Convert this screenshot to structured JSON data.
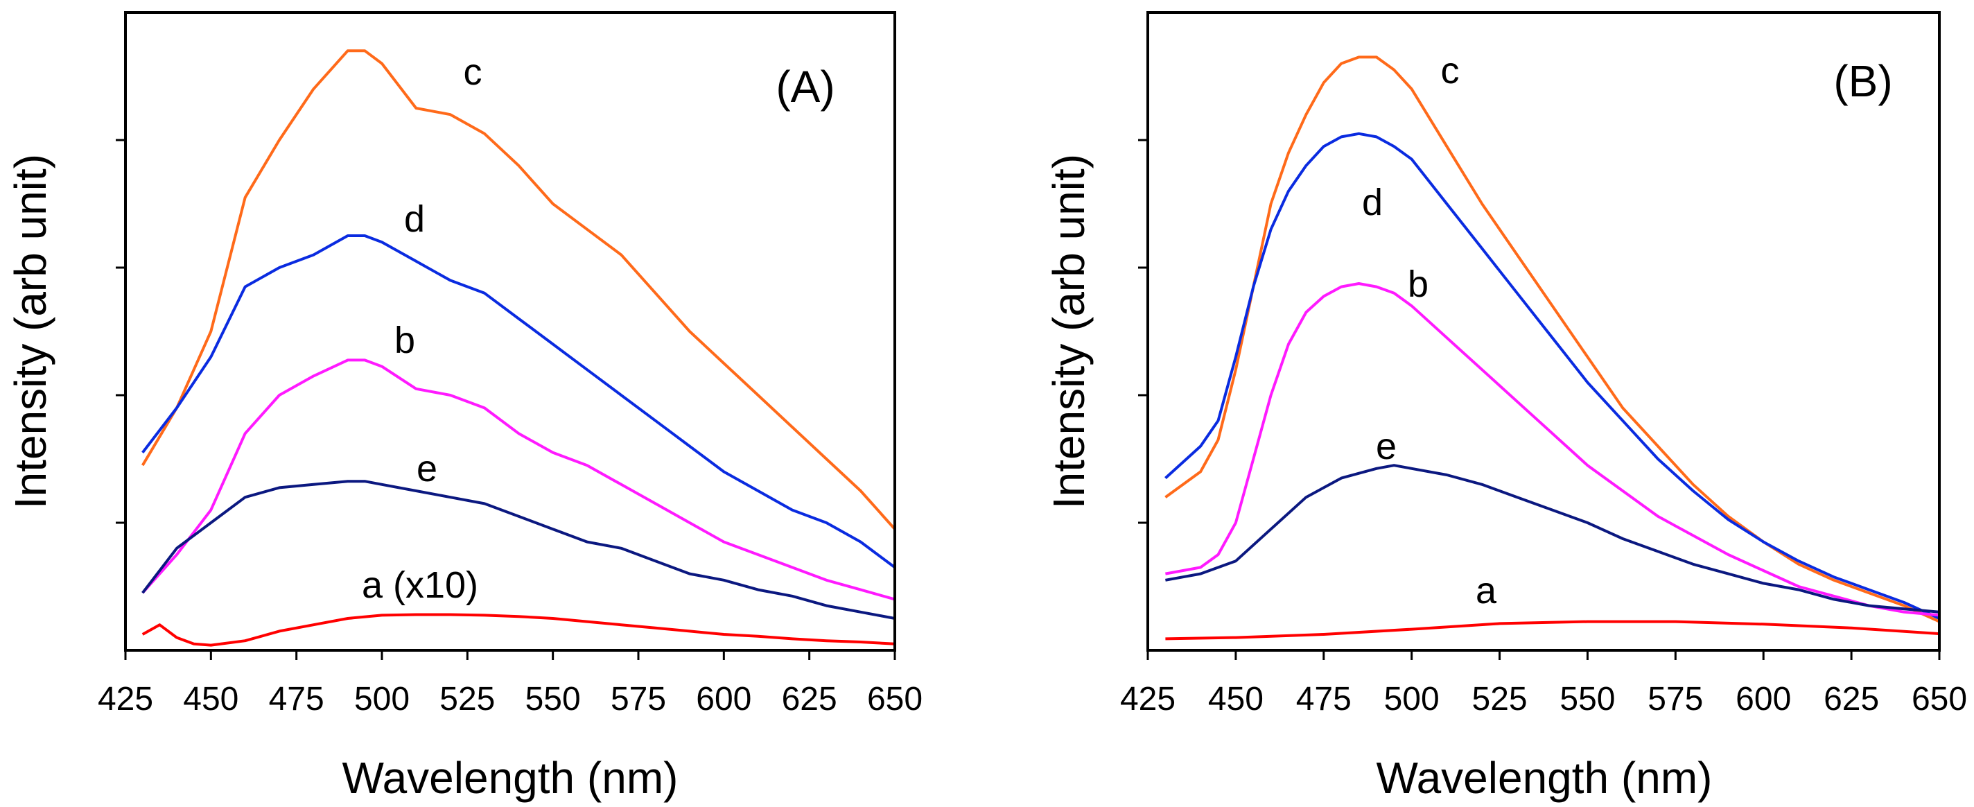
{
  "chart_data": [
    {
      "type": "line",
      "panel_label": "(A)",
      "xlabel": "Wavelength (nm)",
      "ylabel": "Intensity (arb unit)",
      "xlim": [
        425,
        650
      ],
      "ylim": [
        0,
        100
      ],
      "x_ticks": [
        425,
        450,
        475,
        500,
        525,
        550,
        575,
        600,
        625,
        650
      ],
      "y_tick_values": [
        20,
        40,
        60,
        80
      ],
      "y_ticks_labeled": false,
      "series": [
        {
          "name": "c",
          "label": "c",
          "color": "#ff6a1a",
          "x": [
            430,
            440,
            450,
            460,
            470,
            480,
            490,
            495,
            500,
            510,
            520,
            530,
            540,
            550,
            560,
            570,
            580,
            590,
            600,
            610,
            620,
            630,
            640,
            650
          ],
          "y": [
            29,
            38,
            50,
            71,
            80,
            88,
            94,
            94,
            92,
            85,
            84,
            81,
            76,
            70,
            66,
            62,
            56,
            50,
            45,
            40,
            35,
            30,
            25,
            19
          ]
        },
        {
          "name": "d",
          "label": "d",
          "color": "#0a2be0",
          "x": [
            430,
            440,
            450,
            460,
            470,
            480,
            490,
            495,
            500,
            510,
            520,
            530,
            540,
            550,
            560,
            570,
            580,
            590,
            600,
            610,
            620,
            630,
            640,
            650
          ],
          "y": [
            31,
            38,
            46,
            57,
            60,
            62,
            65,
            65,
            64,
            61,
            58,
            56,
            52,
            48,
            44,
            40,
            36,
            32,
            28,
            25,
            22,
            20,
            17,
            13
          ]
        },
        {
          "name": "b",
          "label": "b",
          "color": "#ff1aff",
          "x": [
            430,
            440,
            450,
            460,
            470,
            480,
            490,
            495,
            500,
            510,
            520,
            530,
            540,
            550,
            560,
            570,
            580,
            590,
            600,
            610,
            620,
            630,
            640,
            650
          ],
          "y": [
            9,
            15,
            22,
            34,
            40,
            43,
            45.5,
            45.5,
            44.5,
            41,
            40,
            38,
            34,
            31,
            29,
            26,
            23,
            20,
            17,
            15,
            13,
            11,
            9.5,
            8
          ]
        },
        {
          "name": "e",
          "label": "e",
          "color": "#0b1880",
          "x": [
            430,
            440,
            450,
            460,
            470,
            480,
            490,
            495,
            500,
            510,
            520,
            530,
            540,
            550,
            560,
            570,
            580,
            590,
            600,
            610,
            620,
            630,
            640,
            650
          ],
          "y": [
            9,
            16,
            20,
            24,
            25.5,
            26,
            26.5,
            26.5,
            26,
            25,
            24,
            23,
            21,
            19,
            17,
            16,
            14,
            12,
            11,
            9.5,
            8.5,
            7,
            6,
            5
          ]
        },
        {
          "name": "a (x10)",
          "label": "a (x10)",
          "color": "#ff0000",
          "x": [
            430,
            435,
            440,
            445,
            450,
            460,
            470,
            480,
            490,
            500,
            510,
            520,
            530,
            540,
            550,
            560,
            570,
            580,
            590,
            600,
            610,
            620,
            630,
            640,
            650
          ],
          "y": [
            2.5,
            4,
            2,
            1,
            0.8,
            1.5,
            3,
            4,
            5,
            5.5,
            5.6,
            5.6,
            5.5,
            5.3,
            5,
            4.5,
            4,
            3.5,
            3,
            2.5,
            2.2,
            1.8,
            1.5,
            1.3,
            1
          ]
        }
      ]
    },
    {
      "type": "line",
      "panel_label": "(B)",
      "xlabel": "Wavelength (nm)",
      "ylabel": "Intensity (arb unit)",
      "xlim": [
        425,
        650
      ],
      "ylim": [
        0,
        100
      ],
      "x_ticks": [
        425,
        450,
        475,
        500,
        525,
        550,
        575,
        600,
        625,
        650
      ],
      "y_tick_values": [
        20,
        40,
        60,
        80
      ],
      "y_ticks_labeled": false,
      "series": [
        {
          "name": "c",
          "label": "c",
          "color": "#ff6a1a",
          "x": [
            430,
            440,
            445,
            450,
            455,
            460,
            465,
            470,
            475,
            480,
            485,
            490,
            495,
            500,
            510,
            520,
            530,
            540,
            550,
            560,
            570,
            580,
            590,
            600,
            610,
            620,
            630,
            640,
            650
          ],
          "y": [
            24,
            28,
            33,
            44,
            57,
            70,
            78,
            84,
            89,
            92,
            93,
            93,
            91,
            88,
            79,
            70,
            62,
            54,
            46,
            38,
            32,
            26,
            21,
            17,
            13.5,
            11,
            9,
            7,
            4.5
          ]
        },
        {
          "name": "d",
          "label": "d",
          "color": "#0a2be0",
          "x": [
            430,
            440,
            445,
            450,
            455,
            460,
            465,
            470,
            475,
            480,
            485,
            490,
            495,
            500,
            510,
            520,
            530,
            540,
            550,
            560,
            570,
            580,
            590,
            600,
            610,
            620,
            630,
            640,
            650
          ],
          "y": [
            27,
            32,
            36,
            46,
            57,
            66,
            72,
            76,
            79,
            80.5,
            81,
            80.5,
            79,
            77,
            70,
            63,
            56,
            49,
            42,
            36,
            30,
            25,
            20.5,
            17,
            14,
            11.5,
            9.5,
            7.5,
            5
          ]
        },
        {
          "name": "b",
          "label": "b",
          "color": "#ff1aff",
          "x": [
            430,
            440,
            445,
            450,
            455,
            460,
            465,
            470,
            475,
            480,
            485,
            490,
            495,
            500,
            510,
            520,
            530,
            540,
            550,
            560,
            570,
            580,
            590,
            600,
            610,
            620,
            630,
            640,
            650
          ],
          "y": [
            12,
            13,
            15,
            20,
            30,
            40,
            48,
            53,
            55.5,
            57,
            57.5,
            57,
            56,
            54,
            49,
            44,
            39,
            34,
            29,
            25,
            21,
            18,
            15,
            12.5,
            10,
            8.5,
            7,
            6,
            5.5
          ]
        },
        {
          "name": "e",
          "label": "e",
          "color": "#0b1880",
          "x": [
            430,
            440,
            450,
            460,
            470,
            480,
            490,
            495,
            500,
            510,
            520,
            530,
            540,
            550,
            560,
            570,
            580,
            590,
            600,
            610,
            620,
            630,
            640,
            650
          ],
          "y": [
            11,
            12,
            14,
            19,
            24,
            27,
            28.5,
            29,
            28.5,
            27.5,
            26,
            24,
            22,
            20,
            17.5,
            15.5,
            13.5,
            12,
            10.5,
            9.5,
            8,
            7,
            6.5,
            6
          ]
        },
        {
          "name": "a",
          "label": "a",
          "color": "#ff0000",
          "x": [
            430,
            450,
            475,
            500,
            525,
            550,
            575,
            600,
            625,
            650
          ],
          "y": [
            1.8,
            2,
            2.5,
            3.3,
            4.2,
            4.5,
            4.5,
            4.1,
            3.5,
            2.6
          ]
        }
      ]
    }
  ]
}
